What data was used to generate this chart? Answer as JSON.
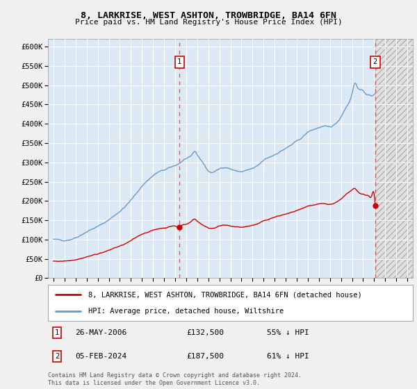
{
  "title": "8, LARKRISE, WEST ASHTON, TROWBRIDGE, BA14 6FN",
  "subtitle": "Price paid vs. HM Land Registry's House Price Index (HPI)",
  "legend_line1": "8, LARKRISE, WEST ASHTON, TROWBRIDGE, BA14 6FN (detached house)",
  "legend_line2": "HPI: Average price, detached house, Wiltshire",
  "footnote": "Contains HM Land Registry data © Crown copyright and database right 2024.\nThis data is licensed under the Open Government Licence v3.0.",
  "sale1_date": "26-MAY-2006",
  "sale1_price": "£132,500",
  "sale1_pct": "55% ↓ HPI",
  "sale1_year": 2006.4,
  "sale1_value": 132500,
  "sale2_date": "05-FEB-2024",
  "sale2_price": "£187,500",
  "sale2_pct": "61% ↓ HPI",
  "sale2_year": 2024.09,
  "sale2_value": 187500,
  "ylim": [
    0,
    620000
  ],
  "xlim_start": 1994.5,
  "xlim_end": 2027.5,
  "future_shade_start": 2024.09,
  "hpi_color": "#6699cc",
  "price_color": "#cc0000",
  "bg_color": "#dce9f5",
  "grid_color": "#ffffff",
  "vline_color": "#dd4444",
  "yticks": [
    0,
    50000,
    100000,
    150000,
    200000,
    250000,
    300000,
    350000,
    400000,
    450000,
    500000,
    550000,
    600000
  ],
  "ytick_labels": [
    "£0",
    "£50K",
    "£100K",
    "£150K",
    "£200K",
    "£250K",
    "£300K",
    "£350K",
    "£400K",
    "£450K",
    "£500K",
    "£550K",
    "£600K"
  ],
  "xticks": [
    1995,
    1996,
    1997,
    1998,
    1999,
    2000,
    2001,
    2002,
    2003,
    2004,
    2005,
    2006,
    2007,
    2008,
    2009,
    2010,
    2011,
    2012,
    2013,
    2014,
    2015,
    2016,
    2017,
    2018,
    2019,
    2020,
    2021,
    2022,
    2023,
    2024,
    2025,
    2026,
    2027
  ],
  "hpi_base": [
    [
      1995.0,
      100000
    ],
    [
      1995.5,
      99000
    ],
    [
      1996.0,
      98000
    ],
    [
      1996.5,
      100000
    ],
    [
      1997.0,
      105000
    ],
    [
      1997.5,
      112000
    ],
    [
      1998.0,
      120000
    ],
    [
      1998.5,
      127000
    ],
    [
      1999.0,
      134000
    ],
    [
      1999.5,
      142000
    ],
    [
      2000.0,
      151000
    ],
    [
      2000.5,
      162000
    ],
    [
      2001.0,
      173000
    ],
    [
      2001.5,
      186000
    ],
    [
      2002.0,
      202000
    ],
    [
      2002.5,
      220000
    ],
    [
      2003.0,
      238000
    ],
    [
      2003.5,
      253000
    ],
    [
      2004.0,
      265000
    ],
    [
      2004.5,
      275000
    ],
    [
      2005.0,
      280000
    ],
    [
      2005.5,
      286000
    ],
    [
      2006.0,
      292000
    ],
    [
      2006.5,
      300000
    ],
    [
      2007.0,
      310000
    ],
    [
      2007.5,
      318000
    ],
    [
      2007.75,
      328000
    ],
    [
      2008.0,
      320000
    ],
    [
      2008.5,
      300000
    ],
    [
      2009.0,
      278000
    ],
    [
      2009.5,
      275000
    ],
    [
      2010.0,
      283000
    ],
    [
      2010.5,
      287000
    ],
    [
      2011.0,
      283000
    ],
    [
      2011.5,
      278000
    ],
    [
      2012.0,
      276000
    ],
    [
      2012.5,
      280000
    ],
    [
      2013.0,
      284000
    ],
    [
      2013.5,
      292000
    ],
    [
      2014.0,
      305000
    ],
    [
      2014.5,
      313000
    ],
    [
      2015.0,
      320000
    ],
    [
      2015.5,
      328000
    ],
    [
      2016.0,
      336000
    ],
    [
      2016.5,
      345000
    ],
    [
      2017.0,
      355000
    ],
    [
      2017.5,
      365000
    ],
    [
      2018.0,
      378000
    ],
    [
      2018.5,
      385000
    ],
    [
      2019.0,
      390000
    ],
    [
      2019.5,
      393000
    ],
    [
      2020.0,
      392000
    ],
    [
      2020.5,
      400000
    ],
    [
      2021.0,
      418000
    ],
    [
      2021.5,
      445000
    ],
    [
      2022.0,
      478000
    ],
    [
      2022.25,
      505000
    ],
    [
      2022.5,
      495000
    ],
    [
      2022.75,
      488000
    ],
    [
      2023.0,
      485000
    ],
    [
      2023.25,
      478000
    ],
    [
      2023.5,
      475000
    ],
    [
      2023.75,
      472000
    ],
    [
      2024.0,
      476000
    ],
    [
      2024.09,
      480000
    ]
  ],
  "price_base": [
    [
      1995.0,
      43000
    ],
    [
      1995.5,
      44000
    ],
    [
      1996.0,
      44500
    ],
    [
      1996.5,
      46000
    ],
    [
      1997.0,
      48000
    ],
    [
      1997.5,
      51000
    ],
    [
      1998.0,
      55000
    ],
    [
      1998.5,
      59000
    ],
    [
      1999.0,
      63000
    ],
    [
      1999.5,
      67000
    ],
    [
      2000.0,
      72000
    ],
    [
      2000.5,
      78000
    ],
    [
      2001.0,
      83000
    ],
    [
      2001.5,
      89000
    ],
    [
      2002.0,
      97000
    ],
    [
      2002.5,
      106000
    ],
    [
      2003.0,
      114000
    ],
    [
      2003.5,
      119000
    ],
    [
      2004.0,
      124000
    ],
    [
      2004.5,
      128000
    ],
    [
      2005.0,
      130000
    ],
    [
      2005.5,
      133000
    ],
    [
      2006.0,
      135000
    ],
    [
      2006.4,
      132500
    ],
    [
      2006.5,
      135000
    ],
    [
      2007.0,
      140000
    ],
    [
      2007.5,
      148000
    ],
    [
      2007.75,
      153000
    ],
    [
      2008.0,
      148000
    ],
    [
      2008.5,
      138000
    ],
    [
      2009.0,
      130000
    ],
    [
      2009.5,
      130000
    ],
    [
      2010.0,
      135000
    ],
    [
      2010.5,
      137000
    ],
    [
      2011.0,
      135000
    ],
    [
      2011.5,
      133000
    ],
    [
      2012.0,
      132000
    ],
    [
      2012.5,
      134000
    ],
    [
      2013.0,
      137000
    ],
    [
      2013.5,
      141000
    ],
    [
      2014.0,
      148000
    ],
    [
      2014.5,
      153000
    ],
    [
      2015.0,
      158000
    ],
    [
      2015.5,
      162000
    ],
    [
      2016.0,
      166000
    ],
    [
      2016.5,
      170000
    ],
    [
      2017.0,
      175000
    ],
    [
      2017.5,
      180000
    ],
    [
      2018.0,
      186000
    ],
    [
      2018.5,
      189000
    ],
    [
      2019.0,
      192000
    ],
    [
      2019.5,
      193000
    ],
    [
      2020.0,
      191000
    ],
    [
      2020.5,
      196000
    ],
    [
      2021.0,
      205000
    ],
    [
      2021.5,
      218000
    ],
    [
      2022.0,
      228000
    ],
    [
      2022.25,
      232000
    ],
    [
      2022.5,
      225000
    ],
    [
      2022.75,
      220000
    ],
    [
      2023.0,
      218000
    ],
    [
      2023.25,
      215000
    ],
    [
      2023.5,
      213000
    ],
    [
      2023.75,
      212000
    ],
    [
      2024.0,
      218000
    ],
    [
      2024.09,
      187500
    ]
  ]
}
